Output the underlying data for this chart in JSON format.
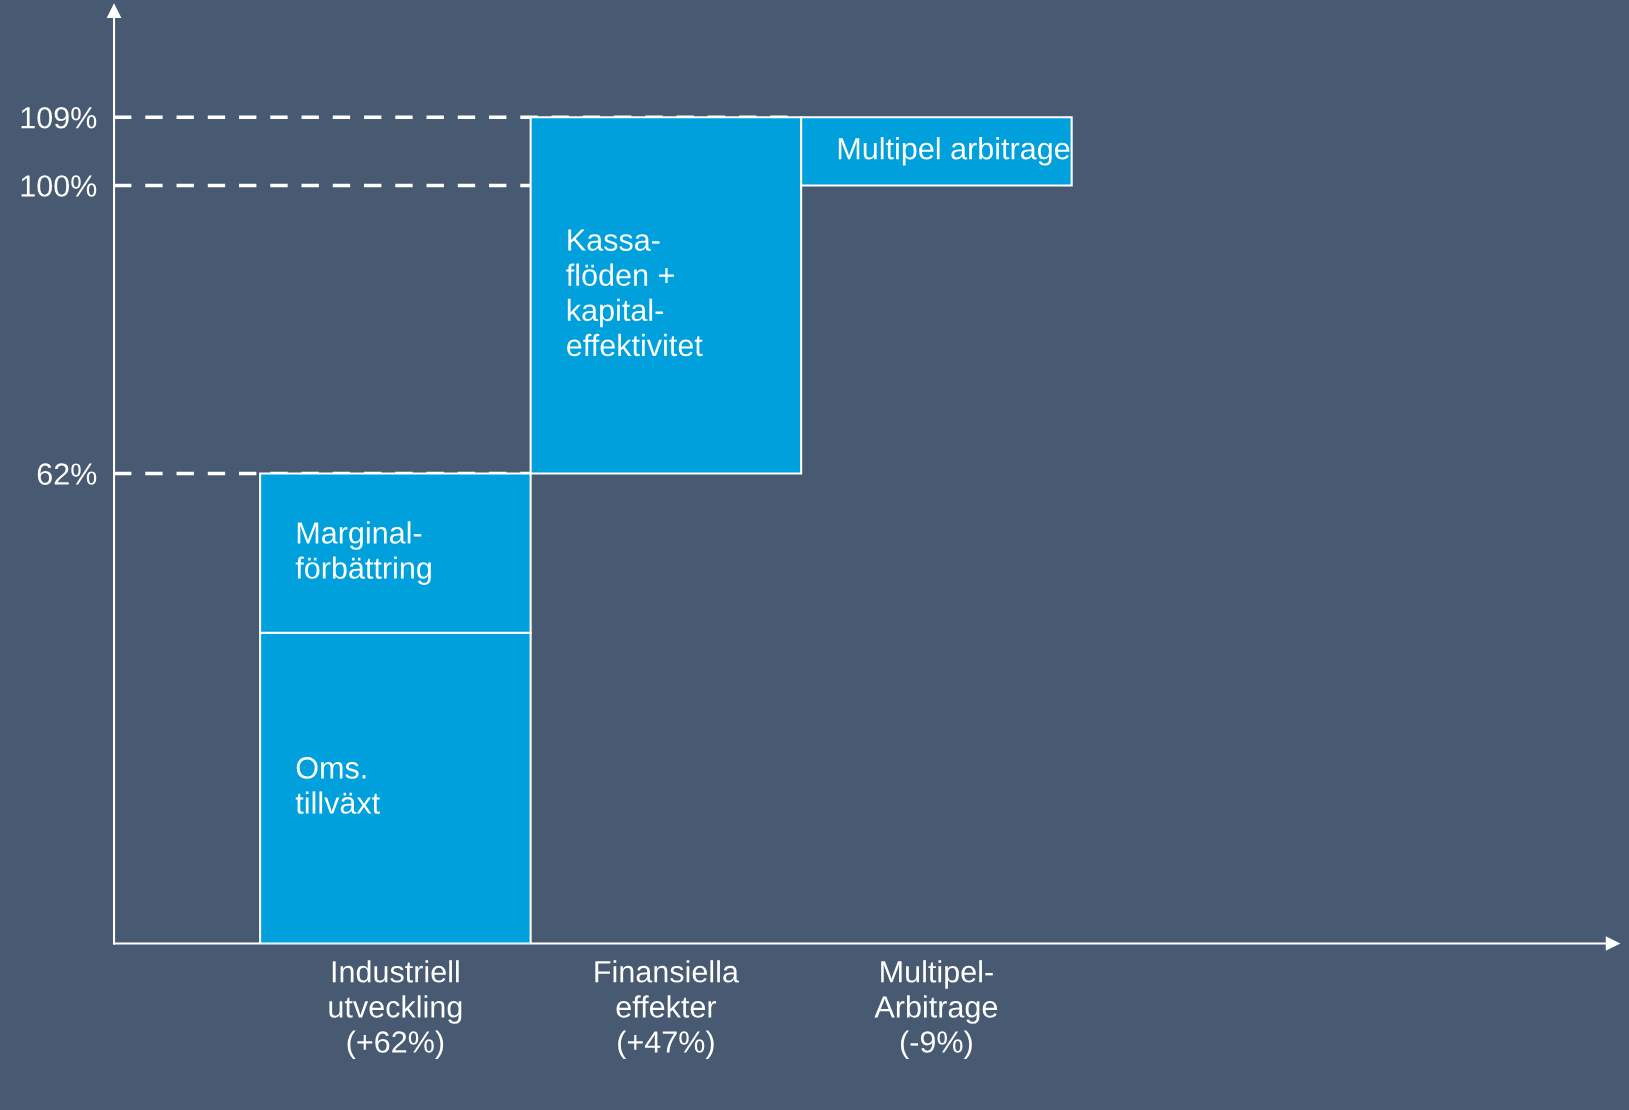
{
  "chart_data": {
    "type": "bar",
    "categories": [
      "Industriell\nutveckling\n(+62%)",
      "Finansiella\neffekter\n(+47%)",
      "Multipel-\nArbitrage\n(-9%)"
    ],
    "series": [
      {
        "name": "Oms.\ntillväxt",
        "color": "#00a0dc",
        "values": [
          41,
          null,
          null
        ],
        "base": [
          0,
          null,
          null
        ]
      },
      {
        "name": "Marginal-\nförbättring",
        "color": "#00a0dc",
        "values": [
          21,
          null,
          null
        ],
        "base": [
          41,
          null,
          null
        ]
      },
      {
        "name": "Kassa-\nflöden +\nkapital-\neffektivitet",
        "color": "#00a0dc",
        "values": [
          null,
          47,
          null
        ],
        "base": [
          null,
          62,
          null
        ]
      },
      {
        "name": "Multipel arbitrage",
        "color": "#00a0dc",
        "values": [
          null,
          null,
          -9
        ],
        "base": [
          null,
          null,
          109
        ]
      }
    ],
    "ylim": [
      0,
      123
    ],
    "yticks": [
      {
        "value": 62,
        "label": "62%"
      },
      {
        "value": 100,
        "label": "100%"
      },
      {
        "value": 109,
        "label": "109%"
      }
    ],
    "ref_lines": [
      {
        "axis": "y",
        "value": 109,
        "label": null,
        "color": "#ffffff",
        "line_style": "dashed"
      },
      {
        "axis": "y",
        "value": 100,
        "label": null,
        "color": "#ffffff",
        "line_style": "dashed"
      },
      {
        "axis": "y",
        "value": 62,
        "label": null,
        "color": "#ffffff",
        "line_style": "dashed"
      }
    ],
    "grid": false,
    "legend": false
  }
}
